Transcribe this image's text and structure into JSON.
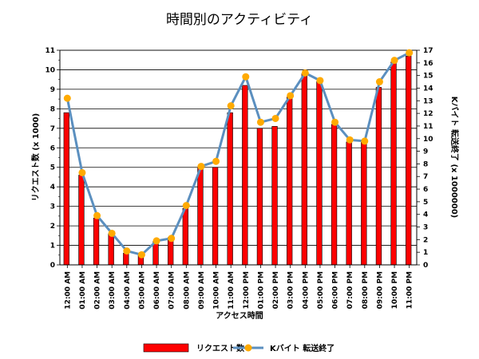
{
  "chart_data": {
    "type": "bar",
    "title": "時間別のアクティビティ",
    "xlabel": "アクセス時間",
    "ylabel": "リクエスト数 (x 1000)",
    "y2label": "Kバイト 転送終了 (x 1000000)",
    "categories": [
      "12:00 AM",
      "01:00 AM",
      "02:00 AM",
      "03:00 AM",
      "04:00 AM",
      "05:00 AM",
      "06:00 AM",
      "07:00 AM",
      "08:00 AM",
      "09:00 AM",
      "10:00 AM",
      "11:00 AM",
      "12:00 PM",
      "01:00 PM",
      "02:00 PM",
      "03:00 PM",
      "04:00 PM",
      "05:00 PM",
      "06:00 PM",
      "07:00 PM",
      "08:00 PM",
      "09:00 PM",
      "10:00 PM",
      "11:00 PM"
    ],
    "ylim": [
      0,
      11
    ],
    "y2lim": [
      0,
      17
    ],
    "grid": true,
    "legend_position": "bottom",
    "series": [
      {
        "name": "リクエスト数",
        "type": "bar",
        "axis": "left",
        "color": "#ff0000",
        "values": [
          7.8,
          4.6,
          2.4,
          1.6,
          0.6,
          0.5,
          1.2,
          1.4,
          2.9,
          5.0,
          5.0,
          7.8,
          9.2,
          7.0,
          7.1,
          8.6,
          9.8,
          9.4,
          7.2,
          6.3,
          6.4,
          9.1,
          10.4,
          10.7
        ]
      },
      {
        "name": "Kバイト 転送終了",
        "type": "line",
        "axis": "right",
        "color": "#5b8fbf",
        "marker_color": "#ffaa00",
        "values": [
          13.2,
          7.3,
          3.9,
          2.5,
          1.1,
          0.8,
          1.9,
          2.1,
          4.7,
          7.8,
          8.2,
          12.6,
          14.9,
          11.3,
          11.6,
          13.4,
          15.2,
          14.6,
          11.3,
          9.9,
          9.8,
          14.5,
          16.2,
          16.8
        ]
      }
    ]
  }
}
